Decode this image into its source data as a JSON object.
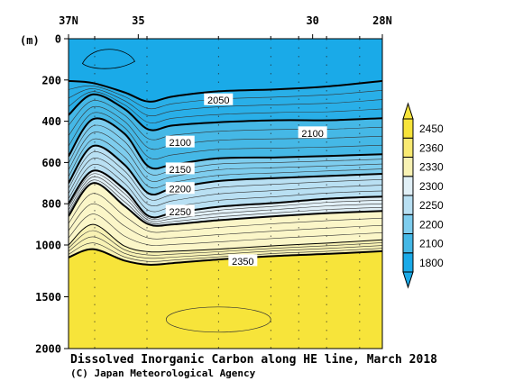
{
  "chart_data": {
    "type": "heatmap",
    "title": "Dissolved Inorganic Carbon along HE line, March 2018",
    "credit": "(C) Japan Meteorological Agency",
    "ylabel": "(m)",
    "x": {
      "range": [
        37,
        28
      ],
      "ticks": [
        37,
        35,
        30,
        28
      ],
      "tick_labels": [
        "37N",
        "35",
        "30",
        "28N"
      ],
      "stations": [
        37,
        36.25,
        34.75,
        32.7,
        31.2,
        30.4,
        29.6,
        28.65,
        28
      ]
    },
    "y": {
      "range": [
        0,
        2000
      ],
      "ticks": [
        0,
        200,
        400,
        600,
        800,
        1000,
        1500,
        2000
      ],
      "tick_labels": [
        "0",
        "200",
        "400",
        "600",
        "800",
        "1000",
        "1500",
        "2000"
      ],
      "scale": "piecewise linear, 0-1000 m stretched above 1000-2000 m"
    },
    "colorbar": {
      "levels": [
        1800,
        2100,
        2200,
        2250,
        2300,
        2330,
        2360,
        2450
      ],
      "labels": [
        "1800",
        "2100",
        "2200",
        "2250",
        "2300",
        "2330",
        "2360",
        "2450"
      ],
      "colors": [
        "#1aaae8",
        "#45b8e6",
        "#7ecdee",
        "#b9e0f3",
        "#e1f0f7",
        "#f8f2b4",
        "#f9ea72",
        "#f7e43a"
      ]
    },
    "contours": [
      {
        "value": 2050,
        "label": "2050",
        "points": [
          [
            37,
            205
          ],
          [
            36.3,
            215
          ],
          [
            35.4,
            260
          ],
          [
            34.7,
            305
          ],
          [
            34.0,
            280
          ],
          [
            32.7,
            255
          ],
          [
            31.0,
            245
          ],
          [
            29.5,
            230
          ],
          [
            28,
            205
          ]
        ]
      },
      {
        "value": 2100,
        "label": "2100",
        "points": [
          [
            37,
            370
          ],
          [
            36.3,
            270
          ],
          [
            35.4,
            340
          ],
          [
            34.7,
            440
          ],
          [
            34.0,
            420
          ],
          [
            32.7,
            405
          ],
          [
            31.0,
            395
          ],
          [
            29.5,
            395
          ],
          [
            28,
            385
          ]
        ]
      },
      {
        "value": 2150,
        "label": "2150",
        "points": [
          [
            37,
            570
          ],
          [
            36.3,
            390
          ],
          [
            35.4,
            460
          ],
          [
            34.7,
            620
          ],
          [
            34.0,
            610
          ],
          [
            32.7,
            580
          ],
          [
            31.0,
            575
          ],
          [
            29.5,
            568
          ],
          [
            28,
            560
          ]
        ]
      },
      {
        "value": 2200,
        "label": "2200",
        "points": [
          [
            37,
            700
          ],
          [
            36.3,
            520
          ],
          [
            35.4,
            610
          ],
          [
            34.7,
            750
          ],
          [
            34.0,
            725
          ],
          [
            32.7,
            690
          ],
          [
            31.0,
            675
          ],
          [
            29.5,
            665
          ],
          [
            28,
            655
          ]
        ]
      },
      {
        "value": 2250,
        "label": "2250",
        "points": [
          [
            37,
            800
          ],
          [
            36.3,
            640
          ],
          [
            35.4,
            730
          ],
          [
            34.7,
            860
          ],
          [
            34.0,
            845
          ],
          [
            32.7,
            815
          ],
          [
            31.0,
            795
          ],
          [
            29.5,
            775
          ],
          [
            28,
            765
          ]
        ]
      },
      {
        "value": 2300,
        "label": "",
        "points": [
          [
            37,
            860
          ],
          [
            36.3,
            700
          ],
          [
            35.4,
            810
          ],
          [
            34.7,
            900
          ],
          [
            34.0,
            900
          ],
          [
            32.7,
            880
          ],
          [
            31.0,
            860
          ],
          [
            29.5,
            845
          ],
          [
            28,
            835
          ]
        ]
      },
      {
        "value": 2330,
        "label": "",
        "points": [
          [
            37,
            1000
          ],
          [
            36.3,
            900
          ],
          [
            35.4,
            1010
          ],
          [
            34.7,
            1065
          ],
          [
            34.0,
            1060
          ],
          [
            32.7,
            1040
          ],
          [
            31.0,
            1005
          ],
          [
            29.5,
            990
          ],
          [
            28,
            975
          ]
        ]
      },
      {
        "value": 2350,
        "label": "2350",
        "points": [
          [
            37,
            1120
          ],
          [
            36.3,
            1040
          ],
          [
            35.4,
            1150
          ],
          [
            34.7,
            1190
          ],
          [
            34.0,
            1175
          ],
          [
            32.7,
            1140
          ],
          [
            31.0,
            1105
          ],
          [
            29.5,
            1085
          ],
          [
            28,
            1060
          ]
        ]
      }
    ],
    "contour_labels": [
      {
        "value": 2050,
        "text": "2050",
        "x": 32.7,
        "y": 300
      },
      {
        "value": 2100,
        "text": "2100",
        "x": 30.0,
        "y": 460
      },
      {
        "value": 2100,
        "text": "2100",
        "x": 33.8,
        "y": 505
      },
      {
        "value": 2150,
        "text": "2150",
        "x": 33.8,
        "y": 635
      },
      {
        "value": 2200,
        "text": "2200",
        "x": 33.8,
        "y": 730
      },
      {
        "value": 2250,
        "text": "2250",
        "x": 33.8,
        "y": 840
      },
      {
        "value": 2350,
        "text": "2350",
        "x": 32.0,
        "y": 1160
      }
    ],
    "grid": false,
    "legend_position": "right"
  }
}
